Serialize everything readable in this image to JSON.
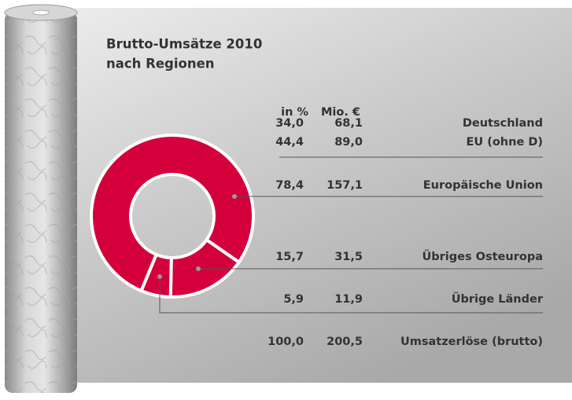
{
  "chart_data": {
    "type": "donut",
    "title": "Brutto-Umsätze 2010",
    "subtitle": "nach Regionen",
    "color": "#d4003c",
    "column_headers": [
      "in %",
      "Mio. €"
    ],
    "categories": [
      "Europäische Union",
      "Übriges Osteuropa",
      "Übrige Länder"
    ],
    "values": [
      78.4,
      15.7,
      5.9
    ],
    "value_labels": [
      "78,4",
      "15,7",
      "5,9"
    ],
    "amount_labels": [
      "157,1",
      "31,5",
      "11,9"
    ],
    "breakdown": {
      "categories": [
        "Deutschland",
        "EU (ohne D)"
      ],
      "value_labels": [
        "34,0",
        "44,4"
      ],
      "amount_labels": [
        "68,1",
        "89,0"
      ]
    },
    "total": {
      "label": "Umsatzerlöse (brutto)",
      "value_label": "100,0",
      "amount_label": "200,5"
    }
  }
}
